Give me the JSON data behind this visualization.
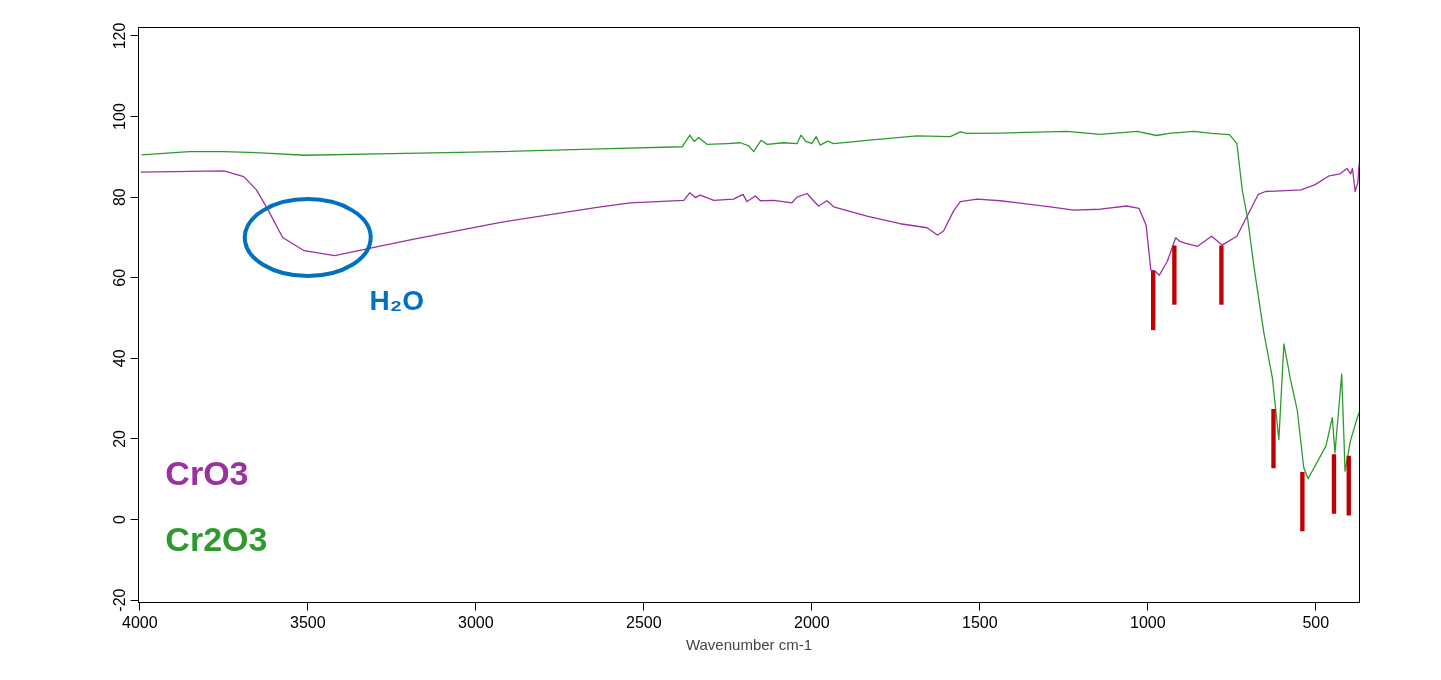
{
  "chart_data": {
    "type": "line",
    "xlabel": "Wavenumber cm-1",
    "xlim": [
      4004,
      370
    ],
    "ylim": [
      -20.6,
      122.1
    ],
    "xticks": [
      4000,
      3500,
      3000,
      2500,
      2000,
      1500,
      1000,
      500
    ],
    "yticks": [
      -20,
      0,
      20,
      40,
      60,
      80,
      100,
      120
    ],
    "grid": false,
    "legend": "bottom left",
    "line_style": "solid",
    "annotations": [
      {
        "text": "H₂O",
        "x": 3420,
        "y": 65.5
      }
    ],
    "series": [
      {
        "name": "CrO3",
        "color": "#9b30a0",
        "x": [
          3997,
          3750,
          3691,
          3653,
          3620,
          3575,
          3511,
          3420,
          3317,
          3188,
          2930,
          2629,
          2540,
          2381,
          2363,
          2347,
          2332,
          2292,
          2233,
          2205,
          2193,
          2168,
          2153,
          2113,
          2059,
          2044,
          2014,
          1995,
          1980,
          1955,
          1935,
          1836,
          1737,
          1657,
          1626,
          1608,
          1578,
          1558,
          1508,
          1439,
          1290,
          1221,
          1142,
          1063,
          1026,
          1005,
          991,
          979,
          966,
          942,
          917,
          905,
          889,
          852,
          810,
          779,
          735,
          671,
          650,
          544,
          502,
          460,
          428,
          407,
          396,
          391,
          383,
          375,
          371
        ],
        "values": [
          86.2,
          86.5,
          85.1,
          81.8,
          77.1,
          70.0,
          66.7,
          65.5,
          67.3,
          69.5,
          73.7,
          77.6,
          78.6,
          79.2,
          81.1,
          79.9,
          80.5,
          79.2,
          79.5,
          80.7,
          78.9,
          80.3,
          79.1,
          79.2,
          78.6,
          80.0,
          80.9,
          79.1,
          77.8,
          79.1,
          77.6,
          75.3,
          73.4,
          72.4,
          70.6,
          71.6,
          76.6,
          78.9,
          79.5,
          79.1,
          77.6,
          76.8,
          77.0,
          77.8,
          77.2,
          73.0,
          61.9,
          61.7,
          60.6,
          64.1,
          69.9,
          69.0,
          68.6,
          67.8,
          70.3,
          68.1,
          70.3,
          80.7,
          81.4,
          81.8,
          83.1,
          85.3,
          85.8,
          87.1,
          85.8,
          87.1,
          81.4,
          83.6,
          88.4
        ]
      },
      {
        "name": "Cr2O3",
        "color": "#2e9a2e",
        "x": [
          3995,
          3853,
          3750,
          3640,
          3511,
          3252,
          2930,
          2629,
          2386,
          2363,
          2350,
          2337,
          2312,
          2252,
          2213,
          2188,
          2173,
          2151,
          2133,
          2084,
          2044,
          2032,
          2019,
          2000,
          1987,
          1975,
          1953,
          1935,
          1836,
          1687,
          1588,
          1558,
          1538,
          1439,
          1241,
          1142,
          1032,
          974,
          937,
          863,
          810,
          757,
          735,
          719,
          703,
          682,
          655,
          629,
          610,
          595,
          576,
          555,
          536,
          523,
          470,
          451,
          443,
          423,
          413,
          397,
          381,
          371
        ],
        "values": [
          90.5,
          91.3,
          91.3,
          91.0,
          90.4,
          90.8,
          91.3,
          92.0,
          92.5,
          95.4,
          93.8,
          94.8,
          93.1,
          93.3,
          93.5,
          92.7,
          91.3,
          94.1,
          93.1,
          93.5,
          93.3,
          95.4,
          93.9,
          93.3,
          95.0,
          92.9,
          93.9,
          93.3,
          94.1,
          95.2,
          95.0,
          96.2,
          95.8,
          95.9,
          96.3,
          95.6,
          96.3,
          95.3,
          95.8,
          96.3,
          95.8,
          95.5,
          93.3,
          81.8,
          74.7,
          61.5,
          46.5,
          35.0,
          19.8,
          43.6,
          35.0,
          27.0,
          12.9,
          10.1,
          18.2,
          25.3,
          16.5,
          36.1,
          12.0,
          19.5,
          24.0,
          26.6
        ]
      },
      {
        "type": "bar",
        "color": "#c00000",
        "x": [
          984,
          921,
          781,
          626,
          540,
          446,
          402
        ],
        "base": [
          47.0,
          53.3,
          53.3,
          12.7,
          -2.9,
          1.4,
          1.0
        ],
        "values": [
          14.7,
          14.7,
          14.7,
          14.7,
          14.7,
          14.8,
          14.8
        ]
      }
    ]
  }
}
